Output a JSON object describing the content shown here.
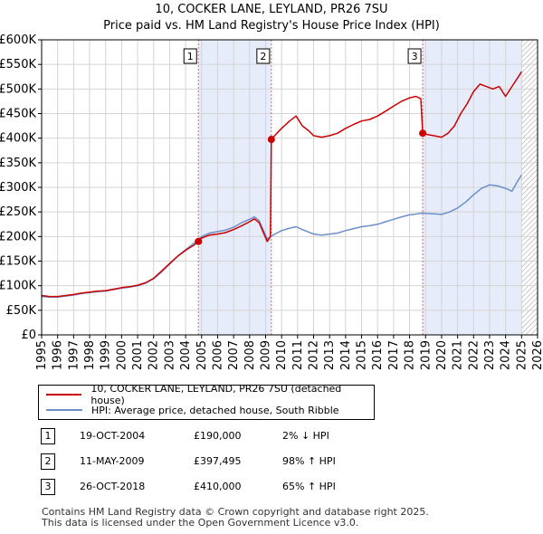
{
  "title": {
    "line1": "10, COCKER LANE, LEYLAND, PR26 7SU",
    "line2": "Price paid vs. HM Land Registry's House Price Index (HPI)"
  },
  "colors": {
    "price_line": "#cc0000",
    "hpi_line": "#6b8fc8",
    "shade": "#e6ecfa",
    "grid": "#d4d4d4",
    "marker_line": "#e06666",
    "hatch": "#999999"
  },
  "legend": {
    "price_label": "10, COCKER LANE, LEYLAND, PR26 7SU (detached house)",
    "hpi_label": "HPI: Average price, detached house, South Ribble"
  },
  "sales": [
    {
      "num": "1",
      "date": "19-OCT-2004",
      "price": "£190,000",
      "hpi": "2% ↓ HPI"
    },
    {
      "num": "2",
      "date": "11-MAY-2009",
      "price": "£397,495",
      "hpi": "98% ↑ HPI"
    },
    {
      "num": "3",
      "date": "26-OCT-2018",
      "price": "£410,000",
      "hpi": "65% ↑ HPI"
    }
  ],
  "footer": {
    "line1": "Contains HM Land Registry data © Crown copyright and database right 2025.",
    "line2": "This data is licensed under the Open Government Licence v3.0."
  },
  "chart_data": {
    "type": "line",
    "title": "10, COCKER LANE, LEYLAND, PR26 7SU — Price paid vs. HM Land Registry's House Price Index (HPI)",
    "xlabel": "",
    "ylabel": "",
    "xlim": [
      1995,
      2026
    ],
    "ylim": [
      0,
      600000
    ],
    "x_ticks": [
      "1995",
      "1996",
      "1997",
      "1998",
      "1999",
      "2000",
      "2001",
      "2002",
      "2003",
      "2004",
      "2005",
      "2006",
      "2007",
      "2008",
      "2009",
      "2010",
      "2011",
      "2012",
      "2013",
      "2014",
      "2015",
      "2016",
      "2017",
      "2018",
      "2019",
      "2020",
      "2021",
      "2022",
      "2023",
      "2024",
      "2025",
      "2026"
    ],
    "y_ticks": [
      {
        "value": 0,
        "label": "£0"
      },
      {
        "value": 50000,
        "label": "£50K"
      },
      {
        "value": 100000,
        "label": "£100K"
      },
      {
        "value": 150000,
        "label": "£150K"
      },
      {
        "value": 200000,
        "label": "£200K"
      },
      {
        "value": 250000,
        "label": "£250K"
      },
      {
        "value": 300000,
        "label": "£300K"
      },
      {
        "value": 350000,
        "label": "£350K"
      },
      {
        "value": 400000,
        "label": "£400K"
      },
      {
        "value": 450000,
        "label": "£450K"
      },
      {
        "value": 500000,
        "label": "£500K"
      },
      {
        "value": 550000,
        "label": "£550K"
      },
      {
        "value": 600000,
        "label": "£600K"
      }
    ],
    "shaded_ranges": [
      [
        2004.8,
        2009.36
      ],
      [
        2018.82,
        2025.0
      ]
    ],
    "hatched_from": 2025.0,
    "markers": [
      {
        "label": "1",
        "x": 2004.8,
        "y": 190000
      },
      {
        "label": "2",
        "x": 2009.36,
        "y": 397495
      },
      {
        "label": "3",
        "x": 2018.82,
        "y": 410000
      }
    ],
    "series": [
      {
        "name": "10, COCKER LANE, LEYLAND, PR26 7SU (detached house)",
        "color": "#cc0000",
        "points": [
          [
            1995.0,
            80000
          ],
          [
            1995.5,
            78000
          ],
          [
            1996.0,
            78000
          ],
          [
            1996.5,
            80000
          ],
          [
            1997.0,
            82000
          ],
          [
            1997.5,
            85000
          ],
          [
            1998.0,
            87000
          ],
          [
            1998.5,
            89000
          ],
          [
            1999.0,
            90000
          ],
          [
            1999.5,
            93000
          ],
          [
            2000.0,
            96000
          ],
          [
            2000.5,
            98000
          ],
          [
            2001.0,
            101000
          ],
          [
            2001.5,
            106000
          ],
          [
            2002.0,
            115000
          ],
          [
            2002.5,
            130000
          ],
          [
            2003.0,
            145000
          ],
          [
            2003.5,
            160000
          ],
          [
            2004.0,
            172000
          ],
          [
            2004.5,
            182000
          ],
          [
            2004.8,
            190000
          ],
          [
            2005.0,
            197000
          ],
          [
            2005.5,
            203000
          ],
          [
            2006.0,
            205000
          ],
          [
            2006.5,
            208000
          ],
          [
            2007.0,
            214000
          ],
          [
            2007.5,
            222000
          ],
          [
            2008.0,
            230000
          ],
          [
            2008.3,
            236000
          ],
          [
            2008.6,
            228000
          ],
          [
            2008.9,
            205000
          ],
          [
            2009.1,
            190000
          ],
          [
            2009.3,
            200000
          ],
          [
            2009.36,
            397495
          ],
          [
            2009.7,
            410000
          ],
          [
            2010.0,
            420000
          ],
          [
            2010.5,
            435000
          ],
          [
            2010.9,
            445000
          ],
          [
            2011.3,
            425000
          ],
          [
            2011.7,
            415000
          ],
          [
            2012.0,
            405000
          ],
          [
            2012.5,
            402000
          ],
          [
            2013.0,
            405000
          ],
          [
            2013.5,
            410000
          ],
          [
            2014.0,
            420000
          ],
          [
            2014.5,
            428000
          ],
          [
            2015.0,
            435000
          ],
          [
            2015.5,
            438000
          ],
          [
            2016.0,
            445000
          ],
          [
            2016.5,
            455000
          ],
          [
            2017.0,
            465000
          ],
          [
            2017.5,
            475000
          ],
          [
            2018.0,
            482000
          ],
          [
            2018.4,
            485000
          ],
          [
            2018.7,
            480000
          ],
          [
            2018.82,
            410000
          ],
          [
            2019.0,
            408000
          ],
          [
            2019.5,
            405000
          ],
          [
            2020.0,
            402000
          ],
          [
            2020.4,
            410000
          ],
          [
            2020.8,
            425000
          ],
          [
            2021.2,
            450000
          ],
          [
            2021.6,
            470000
          ],
          [
            2022.0,
            495000
          ],
          [
            2022.4,
            510000
          ],
          [
            2022.8,
            505000
          ],
          [
            2023.2,
            500000
          ],
          [
            2023.6,
            505000
          ],
          [
            2024.0,
            485000
          ],
          [
            2024.4,
            505000
          ],
          [
            2024.8,
            525000
          ],
          [
            2025.0,
            535000
          ]
        ]
      },
      {
        "name": "HPI: Average price, detached house, South Ribble",
        "color": "#6b8fc8",
        "points": [
          [
            1995.0,
            78000
          ],
          [
            1995.5,
            77000
          ],
          [
            1996.0,
            77000
          ],
          [
            1996.5,
            79000
          ],
          [
            1997.0,
            81000
          ],
          [
            1997.5,
            84000
          ],
          [
            1998.0,
            86000
          ],
          [
            1998.5,
            88000
          ],
          [
            1999.0,
            89000
          ],
          [
            1999.5,
            92000
          ],
          [
            2000.0,
            95000
          ],
          [
            2000.5,
            97000
          ],
          [
            2001.0,
            100000
          ],
          [
            2001.5,
            105000
          ],
          [
            2002.0,
            114000
          ],
          [
            2002.5,
            128000
          ],
          [
            2003.0,
            144000
          ],
          [
            2003.5,
            160000
          ],
          [
            2004.0,
            173000
          ],
          [
            2004.5,
            186000
          ],
          [
            2004.8,
            194000
          ],
          [
            2005.0,
            200000
          ],
          [
            2005.5,
            207000
          ],
          [
            2006.0,
            210000
          ],
          [
            2006.5,
            213000
          ],
          [
            2007.0,
            219000
          ],
          [
            2007.5,
            228000
          ],
          [
            2008.0,
            235000
          ],
          [
            2008.3,
            240000
          ],
          [
            2008.6,
            232000
          ],
          [
            2008.9,
            210000
          ],
          [
            2009.1,
            195000
          ],
          [
            2009.36,
            201000
          ],
          [
            2009.7,
            207000
          ],
          [
            2010.0,
            212000
          ],
          [
            2010.5,
            217000
          ],
          [
            2010.9,
            220000
          ],
          [
            2011.3,
            214000
          ],
          [
            2011.7,
            209000
          ],
          [
            2012.0,
            205000
          ],
          [
            2012.5,
            203000
          ],
          [
            2013.0,
            205000
          ],
          [
            2013.5,
            207000
          ],
          [
            2014.0,
            212000
          ],
          [
            2014.5,
            216000
          ],
          [
            2015.0,
            220000
          ],
          [
            2015.5,
            222000
          ],
          [
            2016.0,
            225000
          ],
          [
            2016.5,
            230000
          ],
          [
            2017.0,
            235000
          ],
          [
            2017.5,
            240000
          ],
          [
            2018.0,
            244000
          ],
          [
            2018.5,
            246000
          ],
          [
            2018.82,
            248000
          ],
          [
            2019.0,
            247000
          ],
          [
            2019.5,
            246000
          ],
          [
            2020.0,
            245000
          ],
          [
            2020.5,
            250000
          ],
          [
            2021.0,
            258000
          ],
          [
            2021.5,
            270000
          ],
          [
            2022.0,
            285000
          ],
          [
            2022.5,
            298000
          ],
          [
            2023.0,
            305000
          ],
          [
            2023.5,
            303000
          ],
          [
            2024.0,
            298000
          ],
          [
            2024.4,
            292000
          ],
          [
            2024.8,
            315000
          ],
          [
            2025.0,
            325000
          ]
        ]
      }
    ]
  }
}
